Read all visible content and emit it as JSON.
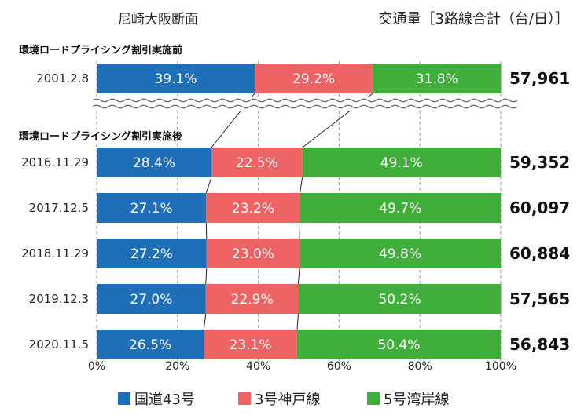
{
  "chart_data": {
    "type": "bar",
    "stacked": true,
    "orientation": "horizontal",
    "title": "尼崎大阪断面",
    "unit_label": "交通量［3路線合計（台/日）］",
    "xlim": [
      0,
      100
    ],
    "x_ticks": [
      "0%",
      "20%",
      "40%",
      "60%",
      "80%",
      "100%"
    ],
    "grid": true,
    "legend_position": "bottom",
    "series": [
      {
        "name": "国道43号",
        "color": "#1f6fb8"
      },
      {
        "name": "3号神戸線",
        "color": "#ee6464"
      },
      {
        "name": "5号湾岸線",
        "color": "#3fae3a"
      }
    ],
    "groups": [
      {
        "label": "環境ロードプライシング割引実施前",
        "rows": [
          {
            "date": "2001.2.8",
            "values": [
              39.1,
              29.2,
              31.8
            ],
            "value_labels": [
              "39.1%",
              "29.2%",
              "31.8%"
            ],
            "total": "57,961"
          }
        ]
      },
      {
        "label": "環境ロードプライシング割引実施後",
        "rows": [
          {
            "date": "2016.11.29",
            "values": [
              28.4,
              22.5,
              49.1
            ],
            "value_labels": [
              "28.4%",
              "22.5%",
              "49.1%"
            ],
            "total": "59,352"
          },
          {
            "date": "2017.12.5",
            "values": [
              27.1,
              23.2,
              49.7
            ],
            "value_labels": [
              "27.1%",
              "23.2%",
              "49.7%"
            ],
            "total": "60,097"
          },
          {
            "date": "2018.11.29",
            "values": [
              27.2,
              23.0,
              49.8
            ],
            "value_labels": [
              "27.2%",
              "23.0%",
              "49.8%"
            ],
            "total": "60,884"
          },
          {
            "date": "2019.12.3",
            "values": [
              27.0,
              22.9,
              50.2
            ],
            "value_labels": [
              "27.0%",
              "22.9%",
              "50.2%"
            ],
            "total": "57,565"
          },
          {
            "date": "2020.11.5",
            "values": [
              26.5,
              23.1,
              50.4
            ],
            "value_labels": [
              "26.5%",
              "23.1%",
              "50.4%"
            ],
            "total": "56,843"
          }
        ]
      }
    ]
  }
}
